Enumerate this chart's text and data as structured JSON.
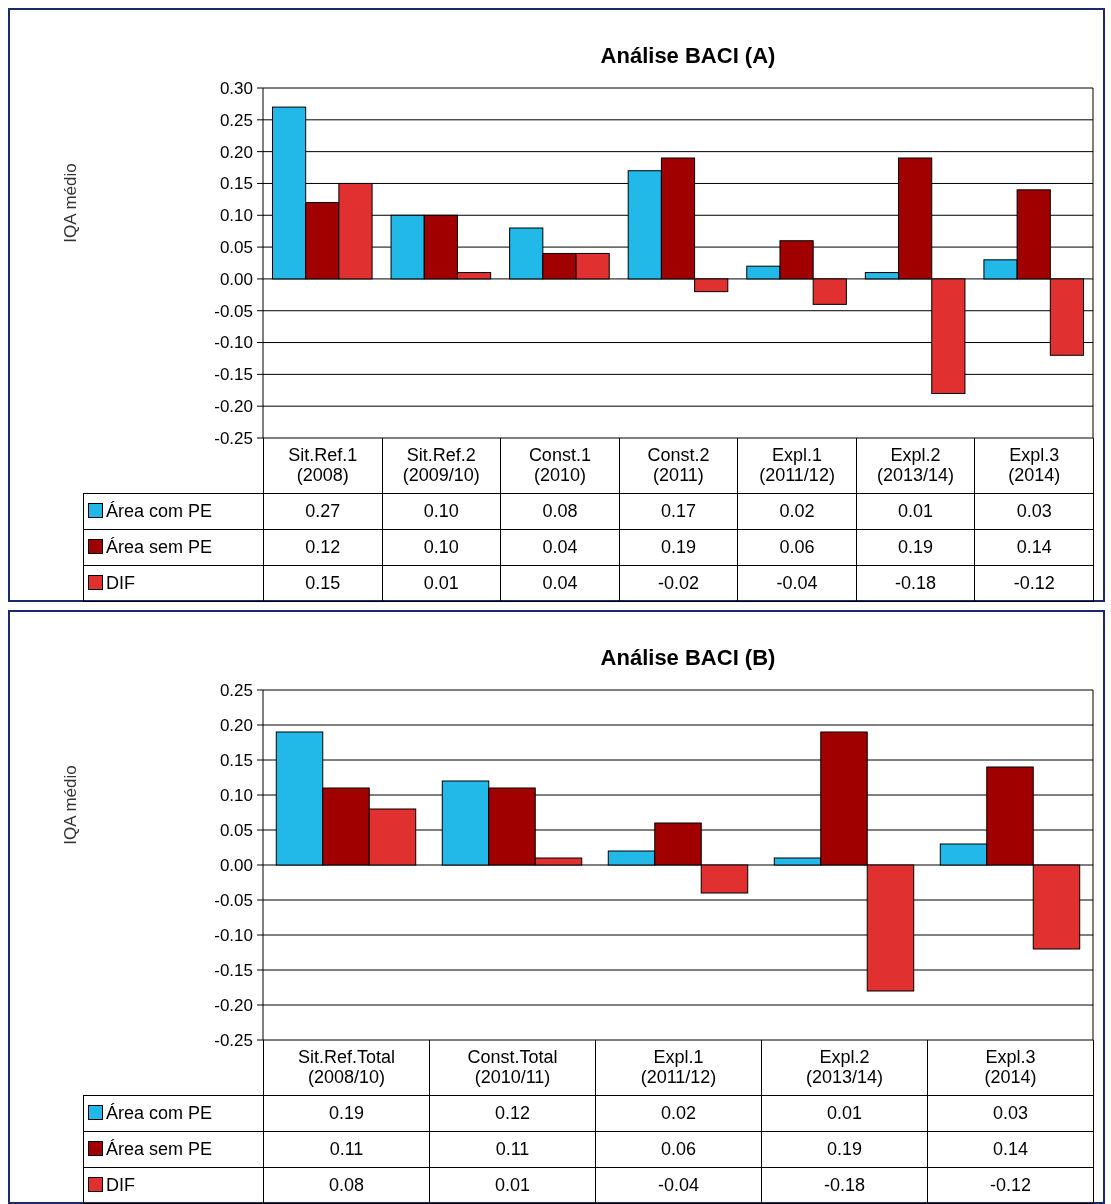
{
  "chart_data": [
    {
      "type": "bar",
      "title": "Análise BACI (A)",
      "ylabel": "IQA médio",
      "categories": [
        "Sit.Ref.1 (2008)",
        "Sit.Ref.2 (2009/10)",
        "Const.1 (2010)",
        "Const.2 (2011)",
        "Expl.1 (2011/12)",
        "Expl.2 (2013/14)",
        "Expl.3 (2014)"
      ],
      "series": [
        {
          "name": "Área com PE",
          "color": "#22b8e8",
          "values": [
            0.27,
            0.1,
            0.08,
            0.17,
            0.02,
            0.01,
            0.03
          ],
          "value_labels": [
            "0.27",
            "0.10",
            "0.08",
            "0.17",
            "0.02",
            "0.01",
            "0.03"
          ]
        },
        {
          "name": "Área sem PE",
          "color": "#a00000",
          "values": [
            0.12,
            0.1,
            0.04,
            0.19,
            0.06,
            0.19,
            0.14
          ],
          "value_labels": [
            "0.12",
            "0.10",
            "0.04",
            "0.19",
            "0.06",
            "0.19",
            "0.14"
          ]
        },
        {
          "name": "DIF",
          "color": "#e03030",
          "values": [
            0.15,
            0.01,
            0.04,
            -0.02,
            -0.04,
            -0.18,
            -0.12
          ],
          "value_labels": [
            "0.15",
            "0.01",
            "0.04",
            "-0.02",
            "-0.04",
            "-0.18",
            "-0.12"
          ]
        }
      ],
      "ylim": [
        -0.25,
        0.3
      ],
      "yticks": [
        {
          "value": -0.25,
          "label": "-0.25"
        },
        {
          "value": -0.2,
          "label": "-0.20"
        },
        {
          "value": -0.15,
          "label": "-0.15"
        },
        {
          "value": -0.1,
          "label": "-0.10"
        },
        {
          "value": -0.05,
          "label": "-0.05"
        },
        {
          "value": 0,
          "label": "0.00"
        },
        {
          "value": 0.05,
          "label": "0.05"
        },
        {
          "value": 0.1,
          "label": "0.10"
        },
        {
          "value": 0.15,
          "label": "0.15"
        },
        {
          "value": 0.2,
          "label": "0.20"
        },
        {
          "value": 0.25,
          "label": "0.25"
        },
        {
          "value": 0.3,
          "label": "0.30"
        }
      ],
      "grid": "y",
      "legend": "bottom"
    },
    {
      "type": "bar",
      "title": "Análise BACI (B)",
      "ylabel": "IQA médio",
      "categories": [
        "Sit.Ref.Total (2008/10)",
        "Const.Total (2010/11)",
        "Expl.1 (2011/12)",
        "Expl.2 (2013/14)",
        "Expl.3 (2014)"
      ],
      "series": [
        {
          "name": "Área com PE",
          "color": "#22b8e8",
          "values": [
            0.19,
            0.12,
            0.02,
            0.01,
            0.03
          ],
          "value_labels": [
            "0.19",
            "0.12",
            "0.02",
            "0.01",
            "0.03"
          ]
        },
        {
          "name": "Área sem PE",
          "color": "#a00000",
          "values": [
            0.11,
            0.11,
            0.06,
            0.19,
            0.14
          ],
          "value_labels": [
            "0.11",
            "0.11",
            "0.06",
            "0.19",
            "0.14"
          ]
        },
        {
          "name": "DIF",
          "color": "#e03030",
          "values": [
            0.08,
            0.01,
            -0.04,
            -0.18,
            -0.12
          ],
          "value_labels": [
            "0.08",
            "0.01",
            "-0.04",
            "-0.18",
            "-0.12"
          ]
        }
      ],
      "ylim": [
        -0.25,
        0.25
      ],
      "yticks": [
        {
          "value": -0.25,
          "label": "-0.25"
        },
        {
          "value": -0.2,
          "label": "-0.20"
        },
        {
          "value": -0.15,
          "label": "-0.15"
        },
        {
          "value": -0.1,
          "label": "-0.10"
        },
        {
          "value": -0.05,
          "label": "-0.05"
        },
        {
          "value": 0,
          "label": "0.00"
        },
        {
          "value": 0.05,
          "label": "0.05"
        },
        {
          "value": 0.1,
          "label": "0.10"
        },
        {
          "value": 0.15,
          "label": "0.15"
        },
        {
          "value": 0.2,
          "label": "0.20"
        },
        {
          "value": 0.25,
          "label": "0.25"
        }
      ],
      "grid": "y",
      "legend": "bottom"
    }
  ]
}
